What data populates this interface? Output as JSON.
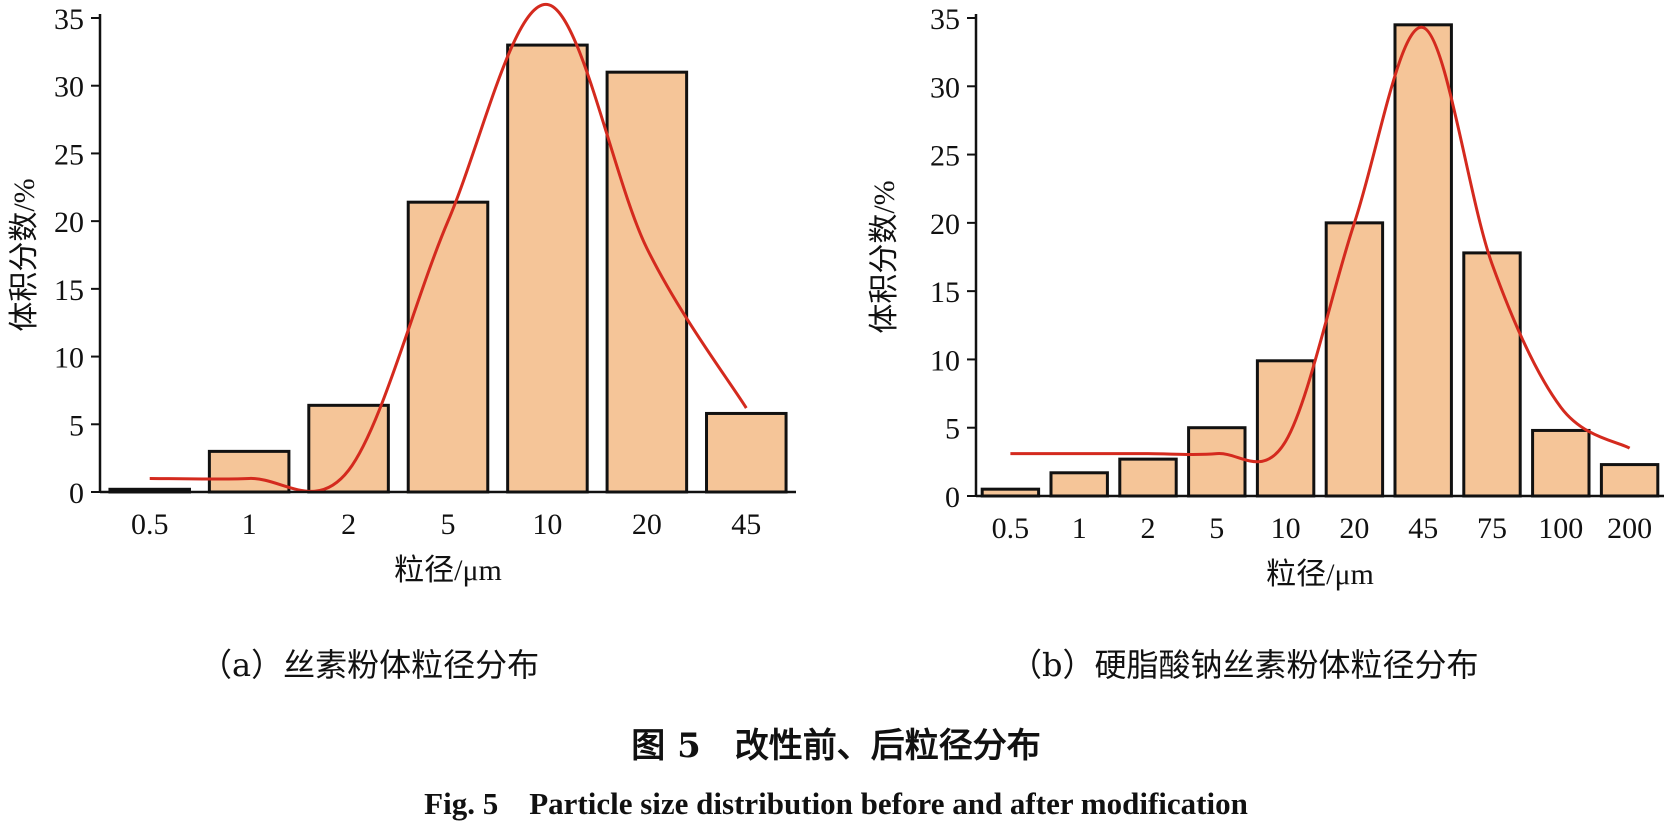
{
  "chart_data": [
    {
      "type": "bar",
      "categories": [
        "0.5",
        "1",
        "2",
        "5",
        "10",
        "20",
        "45"
      ],
      "values": [
        0.2,
        3.0,
        6.4,
        21.4,
        33.0,
        31.0,
        5.8
      ],
      "fit_curve": [
        1.0,
        1.0,
        1.6,
        20.0,
        36.0,
        18.0,
        6.2
      ],
      "xlabel": "粒径/μm",
      "ylabel": "体积分数/%",
      "ylim": [
        0,
        35
      ],
      "yticks": [
        "0",
        "5",
        "10",
        "15",
        "20",
        "25",
        "30",
        "35"
      ],
      "caption": "（a）丝素粉体粒径分布",
      "colors": {
        "bar": "#f5c598",
        "bar_edge": "#111111",
        "curve": "#d42a1e"
      },
      "grid": false
    },
    {
      "type": "bar",
      "categories": [
        "0.5",
        "1",
        "2",
        "5",
        "10",
        "20",
        "45",
        "75",
        "100",
        "200"
      ],
      "values": [
        0.5,
        1.7,
        2.7,
        5.0,
        9.9,
        20.0,
        34.5,
        17.8,
        4.8,
        2.3
      ],
      "fit_curve": [
        3.1,
        3.1,
        3.1,
        3.1,
        4.0,
        20.0,
        34.3,
        17.0,
        6.5,
        3.5
      ],
      "xlabel": "粒径/μm",
      "ylabel": "体积分数/%",
      "ylim": [
        0,
        35
      ],
      "yticks": [
        "0",
        "5",
        "10",
        "15",
        "20",
        "25",
        "30",
        "35"
      ],
      "caption": "（b）硬脂酸钠丝素粉体粒径分布",
      "colors": {
        "bar": "#f5c598",
        "bar_edge": "#111111",
        "curve": "#d42a1e"
      },
      "grid": false
    }
  ],
  "figure": {
    "title_cn": "图 5　改性前、后粒径分布",
    "title_en": "Fig. 5　Particle size distribution before and after modification"
  }
}
